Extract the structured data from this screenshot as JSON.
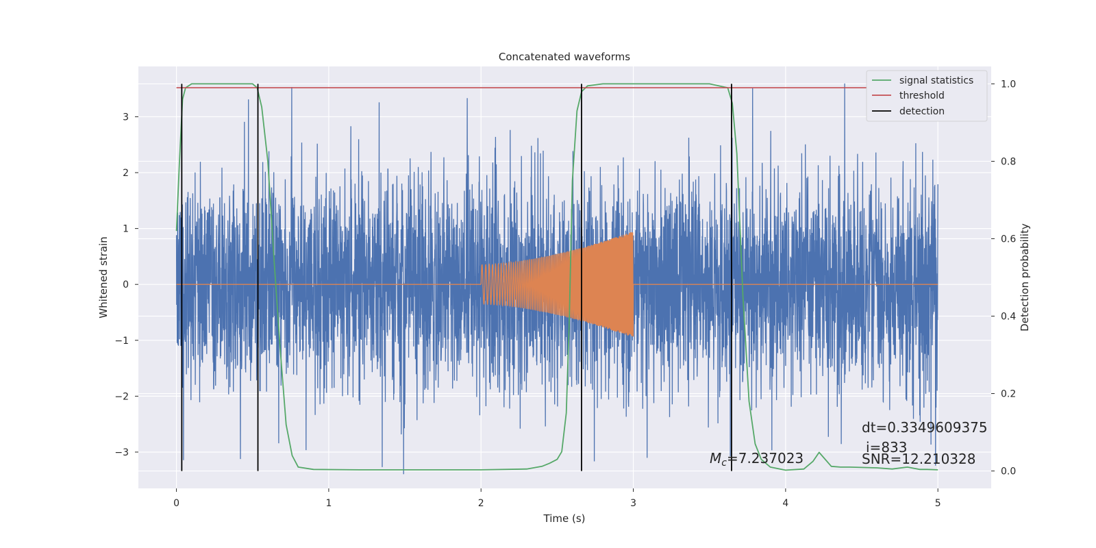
{
  "chart_data": {
    "type": "line",
    "title": "Concatenated waveforms",
    "xlabel": "Time (s)",
    "ylabel_left": "Whitened strain",
    "ylabel_right": "Detection probability",
    "xlim": [
      -0.25,
      5.35
    ],
    "ylim_left": [
      -3.65,
      3.9
    ],
    "ylim_right": [
      -0.045,
      1.045
    ],
    "x_ticks": [
      "0",
      "1",
      "2",
      "3",
      "4",
      "5"
    ],
    "y_ticks_left": [
      "3",
      "2",
      "1",
      "0",
      "−1",
      "−2",
      "−3"
    ],
    "y_ticks_right": [
      "1.0",
      "0.8",
      "0.6",
      "0.4",
      "0.2",
      "0.0"
    ],
    "grid": true,
    "legend_position": "top-right",
    "colors": {
      "background": "#eaeaf2",
      "grid": "#ffffff",
      "noise": "#4c72b0",
      "template": "#dd8452",
      "signal_statistics": "#55a868",
      "threshold": "#c44e52",
      "detection": "#000000"
    },
    "series": [
      {
        "name": "",
        "axis": "left",
        "description_color": "#4c72b0",
        "x_range": [
          0,
          5
        ],
        "typical_amplitude": 1.0,
        "peak_range": [
          -3.4,
          3.6
        ]
      },
      {
        "name": "",
        "axis": "left",
        "description_color": "#dd8452",
        "chirp": {
          "start": 2.0,
          "end": 3.0,
          "start_amplitude": 0.35,
          "end_amplitude": 0.95
        }
      },
      {
        "name": "signal statistics",
        "axis": "right",
        "x": [
          0.0,
          0.02,
          0.04,
          0.06,
          0.1,
          0.2,
          0.5,
          0.53,
          0.56,
          0.6,
          0.64,
          0.68,
          0.72,
          0.76,
          0.8,
          0.9,
          1.2,
          2.0,
          2.3,
          2.4,
          2.45,
          2.5,
          2.53,
          2.56,
          2.58,
          2.6,
          2.63,
          2.66,
          2.7,
          2.8,
          3.5,
          3.62,
          3.65,
          3.68,
          3.72,
          3.76,
          3.8,
          3.84,
          3.9,
          4.0,
          4.12,
          4.18,
          4.22,
          4.26,
          4.3,
          4.36,
          4.42,
          4.6,
          4.7,
          4.8,
          4.88,
          4.93,
          5.0
        ],
        "y": [
          0.62,
          0.8,
          0.96,
          0.99,
          1.0,
          1.0,
          1.0,
          0.99,
          0.94,
          0.8,
          0.55,
          0.32,
          0.12,
          0.04,
          0.01,
          0.004,
          0.003,
          0.003,
          0.005,
          0.012,
          0.02,
          0.03,
          0.05,
          0.15,
          0.4,
          0.75,
          0.93,
          0.98,
          0.995,
          1.0,
          1.0,
          0.99,
          0.95,
          0.82,
          0.45,
          0.18,
          0.07,
          0.03,
          0.01,
          0.002,
          0.005,
          0.025,
          0.048,
          0.03,
          0.012,
          0.01,
          0.01,
          0.008,
          0.005,
          0.01,
          0.004,
          0.004,
          0.003
        ]
      },
      {
        "name": "threshold",
        "axis": "right",
        "x": [
          0,
          5
        ],
        "y": [
          0.99,
          0.99
        ]
      },
      {
        "name": "detection",
        "axis": "right",
        "x_positions": [
          0.035,
          0.535,
          2.66,
          3.645
        ],
        "y_range": [
          0.0,
          1.0
        ]
      }
    ],
    "annotations": {
      "dt": "dt=0.3349609375",
      "i": "i=833",
      "snr": "SNR=12.210328",
      "mc_symbol": "M",
      "mc_sub": "c",
      "mc_value": "=7.237023"
    }
  }
}
